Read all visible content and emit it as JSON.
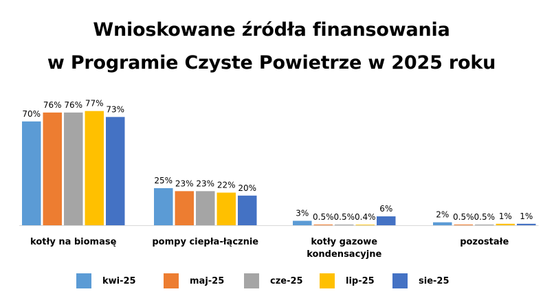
{
  "chart_data": {
    "type": "bar",
    "title": "Wnioskowane źródła finansowania w Programie Czyste Powietrze w 2025 roku",
    "title_lines": [
      "Wnioskowane źródła finansowania",
      "w Programie Czyste Powietrze w 2025 roku"
    ],
    "categories": [
      "kotły na biomasę",
      "pompy ciepła-łącznie",
      "kotły gazowe kondensacyjne",
      "pozostałe"
    ],
    "category_lines": [
      [
        "kotły na biomasę"
      ],
      [
        "pompy ciepła-łącznie"
      ],
      [
        "kotły gazowe",
        "kondensacyjne"
      ],
      [
        "pozostałe"
      ]
    ],
    "series": [
      {
        "name": "kwi-25",
        "color": "#5B9BD5",
        "values": [
          70,
          25,
          3,
          2
        ],
        "labels": [
          "70%",
          "25%",
          "3%",
          "2%"
        ]
      },
      {
        "name": "maj-25",
        "color": "#ED7D31",
        "values": [
          76,
          23,
          0.5,
          0.5
        ],
        "labels": [
          "76%",
          "23%",
          "0.5%",
          "0.5%"
        ]
      },
      {
        "name": "cze-25",
        "color": "#A5A5A5",
        "values": [
          76,
          23,
          0.5,
          0.5
        ],
        "labels": [
          "76%",
          "23%",
          "0.5%",
          "0.5%"
        ]
      },
      {
        "name": "lip-25",
        "color": "#FFC000",
        "values": [
          77,
          22,
          0.4,
          1
        ],
        "labels": [
          "77%",
          "22%",
          "0.4%",
          "1%"
        ]
      },
      {
        "name": "sie-25",
        "color": "#4472C4",
        "values": [
          73,
          20,
          6,
          1
        ],
        "labels": [
          "73%",
          "20%",
          "6%",
          "1%"
        ]
      }
    ],
    "ylim": [
      0,
      100
    ],
    "xlabel": "",
    "ylabel": "",
    "grid": false,
    "legend": "bottom",
    "baseline_color": "#D9D9D9"
  }
}
